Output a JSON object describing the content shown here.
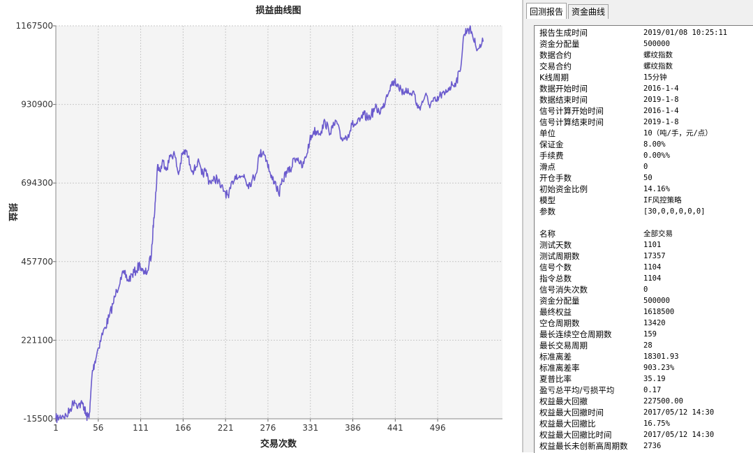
{
  "chart_data": {
    "type": "line",
    "title": "损益曲线图",
    "xlabel": "交易次数",
    "ylabel": "损益",
    "xlim": [
      1,
      580
    ],
    "ylim": [
      -15500,
      1167500
    ],
    "x_ticks": [
      1,
      56,
      111,
      166,
      221,
      276,
      331,
      386,
      441,
      496
    ],
    "y_ticks": [
      -15500,
      221100,
      457700,
      694300,
      930900,
      1167500
    ],
    "grid": true,
    "line_color": "#6a5acd",
    "series": [
      {
        "points": [
          [
            1,
            -15500
          ],
          [
            5,
            -12000
          ],
          [
            10,
            -5000
          ],
          [
            15,
            -8000
          ],
          [
            20,
            15000
          ],
          [
            25,
            40000
          ],
          [
            30,
            25000
          ],
          [
            35,
            30000
          ],
          [
            38,
            20000
          ],
          [
            40,
            -5000
          ],
          [
            42,
            -10000
          ],
          [
            45,
            5000
          ],
          [
            48,
            120000
          ],
          [
            51,
            150000
          ],
          [
            55,
            190000
          ],
          [
            60,
            230000
          ],
          [
            65,
            260000
          ],
          [
            70,
            290000
          ],
          [
            75,
            330000
          ],
          [
            80,
            370000
          ],
          [
            85,
            410000
          ],
          [
            90,
            420000
          ],
          [
            95,
            400000
          ],
          [
            100,
            420000
          ],
          [
            105,
            430000
          ],
          [
            110,
            450000
          ],
          [
            115,
            420000
          ],
          [
            120,
            430000
          ],
          [
            125,
            480000
          ],
          [
            128,
            590000
          ],
          [
            130,
            640000
          ],
          [
            133,
            750000
          ],
          [
            136,
            730000
          ],
          [
            140,
            760000
          ],
          [
            145,
            740000
          ],
          [
            150,
            780000
          ],
          [
            155,
            780000
          ],
          [
            160,
            720000
          ],
          [
            165,
            780000
          ],
          [
            170,
            790000
          ],
          [
            175,
            750000
          ],
          [
            180,
            730000
          ],
          [
            185,
            760000
          ],
          [
            190,
            720000
          ],
          [
            195,
            730000
          ],
          [
            200,
            700000
          ],
          [
            205,
            700000
          ],
          [
            210,
            710000
          ],
          [
            215,
            680000
          ],
          [
            220,
            670000
          ],
          [
            225,
            650000
          ],
          [
            230,
            700000
          ],
          [
            235,
            720000
          ],
          [
            240,
            710000
          ],
          [
            245,
            720000
          ],
          [
            250,
            690000
          ],
          [
            255,
            700000
          ],
          [
            260,
            720000
          ],
          [
            265,
            780000
          ],
          [
            270,
            790000
          ],
          [
            275,
            760000
          ],
          [
            280,
            710000
          ],
          [
            285,
            700000
          ],
          [
            290,
            660000
          ],
          [
            295,
            700000
          ],
          [
            300,
            730000
          ],
          [
            305,
            730000
          ],
          [
            310,
            770000
          ],
          [
            315,
            770000
          ],
          [
            320,
            740000
          ],
          [
            325,
            770000
          ],
          [
            330,
            820000
          ],
          [
            335,
            850000
          ],
          [
            340,
            850000
          ],
          [
            345,
            850000
          ],
          [
            350,
            880000
          ],
          [
            355,
            850000
          ],
          [
            360,
            860000
          ],
          [
            365,
            880000
          ],
          [
            370,
            830000
          ],
          [
            375,
            830000
          ],
          [
            380,
            840000
          ],
          [
            385,
            870000
          ],
          [
            390,
            870000
          ],
          [
            395,
            880000
          ],
          [
            400,
            900000
          ],
          [
            405,
            890000
          ],
          [
            410,
            900000
          ],
          [
            415,
            920000
          ],
          [
            420,
            910000
          ],
          [
            425,
            920000
          ],
          [
            430,
            960000
          ],
          [
            435,
            990000
          ],
          [
            440,
            1000000
          ],
          [
            445,
            990000
          ],
          [
            450,
            960000
          ],
          [
            455,
            980000
          ],
          [
            460,
            960000
          ],
          [
            465,
            970000
          ],
          [
            470,
            920000
          ],
          [
            475,
            930000
          ],
          [
            480,
            960000
          ],
          [
            485,
            930000
          ],
          [
            490,
            940000
          ],
          [
            495,
            940000
          ],
          [
            500,
            960000
          ],
          [
            505,
            960000
          ],
          [
            510,
            980000
          ],
          [
            515,
            990000
          ],
          [
            520,
            1000000
          ],
          [
            525,
            1030000
          ],
          [
            530,
            1140000
          ],
          [
            535,
            1160000
          ],
          [
            540,
            1150000
          ],
          [
            545,
            1110000
          ],
          [
            550,
            1100000
          ],
          [
            555,
            1120000
          ]
        ]
      }
    ]
  },
  "tabs": [
    {
      "label": "回测报告"
    },
    {
      "label": "资金曲线"
    }
  ],
  "report": [
    {
      "label": "报告生成时间",
      "value": "2019/01/08 10:25:11"
    },
    {
      "label": "资金分配量",
      "value": "500000"
    },
    {
      "label": "数据合约",
      "value": "螺纹指数"
    },
    {
      "label": "交易合约",
      "value": "螺纹指数"
    },
    {
      "label": "K线周期",
      "value": "15分钟"
    },
    {
      "label": "数据开始时间",
      "value": "2016-1-4"
    },
    {
      "label": "数据结束时间",
      "value": "2019-1-8"
    },
    {
      "label": "信号计算开始时间",
      "value": "2016-1-4"
    },
    {
      "label": "信号计算结束时间",
      "value": "2019-1-8"
    },
    {
      "label": "单位",
      "value": "10（吨/手，元/点）"
    },
    {
      "label": "保证金",
      "value": "8.00%"
    },
    {
      "label": "手续费",
      "value": "0.00%%"
    },
    {
      "label": "滑点",
      "value": "0"
    },
    {
      "label": "开仓手数",
      "value": "50"
    },
    {
      "label": "初始资金比例",
      "value": "14.16%"
    },
    {
      "label": "模型",
      "value": "IF风控策略"
    },
    {
      "label": "参数",
      "value": "[30,0,0,0,0,0]"
    },
    {
      "label": "",
      "value": ""
    },
    {
      "label": "名称",
      "value": "全部交易"
    },
    {
      "label": "测试天数",
      "value": "1101"
    },
    {
      "label": "测试周期数",
      "value": "17357"
    },
    {
      "label": "信号个数",
      "value": "1104"
    },
    {
      "label": "指令总数",
      "value": "1104"
    },
    {
      "label": "信号消失次数",
      "value": "0"
    },
    {
      "label": "资金分配量",
      "value": "500000"
    },
    {
      "label": "最终权益",
      "value": "1618500"
    },
    {
      "label": "空仓周期数",
      "value": "13420"
    },
    {
      "label": "最长连续空仓周期数",
      "value": "159"
    },
    {
      "label": "最长交易周期",
      "value": "28"
    },
    {
      "label": "标准离差",
      "value": "18301.93"
    },
    {
      "label": "标准离差率",
      "value": "903.23%"
    },
    {
      "label": "夏普比率",
      "value": "35.19"
    },
    {
      "label": "盈亏总平均/亏损平均",
      "value": "0.17"
    },
    {
      "label": "权益最大回撤",
      "value": "227500.00"
    },
    {
      "label": "权益最大回撤时间",
      "value": "2017/05/12 14:30"
    },
    {
      "label": "权益最大回撤比",
      "value": "16.75%"
    },
    {
      "label": "权益最大回撤比时间",
      "value": "2017/05/12 14:30"
    },
    {
      "label": "权益最长未创新高周期数",
      "value": "2736"
    }
  ]
}
